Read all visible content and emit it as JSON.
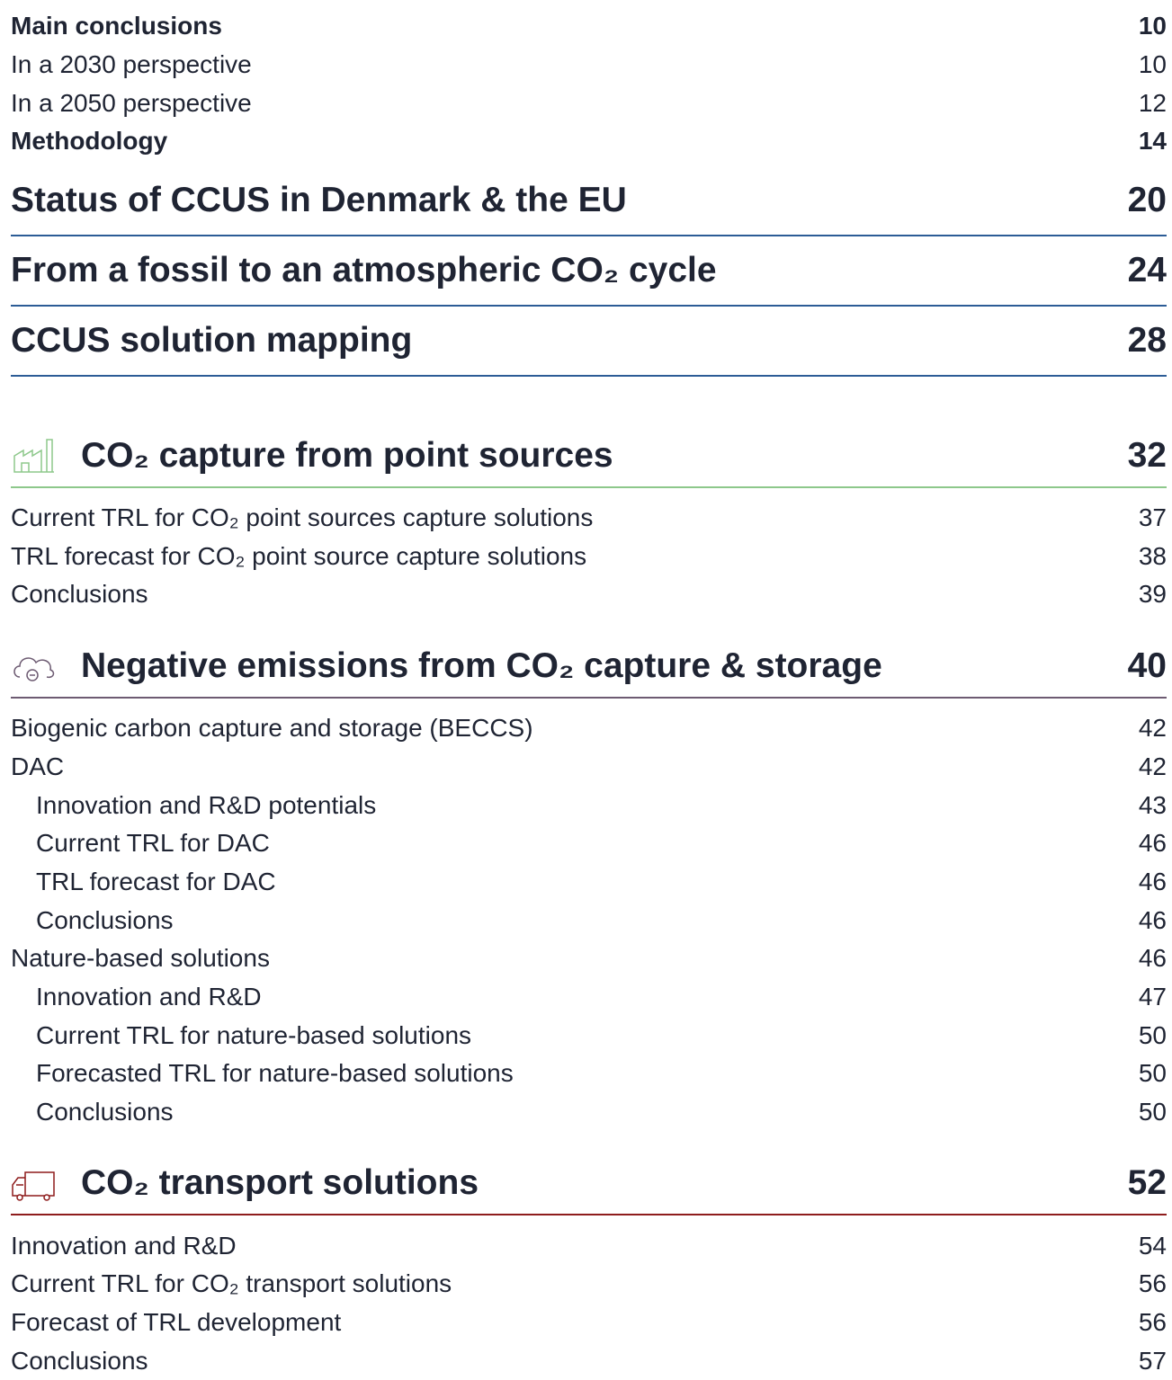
{
  "entries": [
    {
      "title": "Main conclusions",
      "page": 10,
      "bold": true
    },
    {
      "title": "In a 2030 perspective",
      "page": 10
    },
    {
      "title": "In a 2050 perspective",
      "page": 12
    },
    {
      "title": "Methodology",
      "page": 14,
      "bold": true
    }
  ],
  "chapters": [
    {
      "title": "Status of CCUS in Denmark & the EU",
      "page": 20
    },
    {
      "title": "From a fossil to an atmospheric CO₂ cycle",
      "page": 24
    },
    {
      "title": "CCUS solution mapping",
      "page": 28
    }
  ],
  "sections": [
    {
      "title": "CO₂ capture from point sources",
      "page": 32,
      "items": [
        {
          "title": "Current TRL for CO₂ point sources capture solutions",
          "page": 37
        },
        {
          "title": "TRL forecast for CO₂ point source capture solutions",
          "page": 38
        },
        {
          "title": "Conclusions",
          "page": 39
        }
      ]
    },
    {
      "title": "Negative emissions from CO₂ capture & storage",
      "page": 40,
      "items": [
        {
          "title": "Biogenic carbon capture and storage (BECCS)",
          "page": 42
        },
        {
          "title": "DAC",
          "page": 42,
          "items": [
            {
              "title": "Innovation and R&D potentials",
              "page": 43
            },
            {
              "title": "Current TRL for DAC",
              "page": 46
            },
            {
              "title": "TRL forecast for DAC",
              "page": 46
            },
            {
              "title": "Conclusions",
              "page": 46
            }
          ]
        },
        {
          "title": "Nature-based solutions",
          "page": 46,
          "items": [
            {
              "title": "Innovation and R&D",
              "page": 47
            },
            {
              "title": "Current TRL for nature-based solutions",
              "page": 50
            },
            {
              "title": "Forecasted TRL for nature-based solutions",
              "page": 50
            },
            {
              "title": "Conclusions",
              "page": 50
            }
          ]
        }
      ]
    },
    {
      "title": "CO₂ transport solutions",
      "page": 52,
      "items": [
        {
          "title": "Innovation and R&D",
          "page": 54
        },
        {
          "title": "Current TRL for CO₂ transport solutions",
          "page": 56
        },
        {
          "title": "Forecast of TRL development",
          "page": 56
        },
        {
          "title": "Conclusions",
          "page": 57
        }
      ]
    }
  ]
}
